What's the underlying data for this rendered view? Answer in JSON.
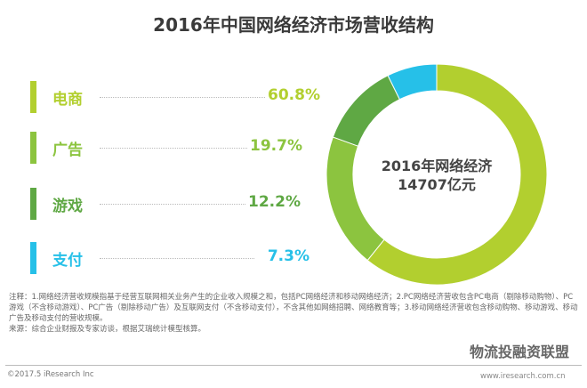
{
  "chart_data": {
    "type": "pie",
    "title": "2016年中国网络经济市场营收结构",
    "center_label": [
      "2016年网络经济",
      "14707亿元"
    ],
    "categories": [
      "电商",
      "广告",
      "游戏",
      "支付"
    ],
    "values": [
      60.8,
      19.7,
      12.2,
      7.3
    ],
    "value_labels": [
      "60.8%",
      "19.7%",
      "12.2%",
      "7.3%"
    ],
    "colors": [
      "#b2cf2f",
      "#8cc43f",
      "#5fa844",
      "#26c0e8"
    ],
    "donut": true,
    "legend": "left"
  },
  "footer": {
    "note": "注释：1.网络经济营收规模指基于经营互联网相关业务产生的企业收入规模之和，包括PC网络经济和移动网络经济；2.PC网络经济营收包含PC电商（剔除移动购物）、PC游戏（不含移动游戏）、PC广告（剔除移动广告）及互联网支付（不含移动支付），不含其他如网络招聘、网络教育等；3.移动网络经济营收包含移动购物、移动游戏、移动广告及移动支付的营收规模。",
    "source": "来源：综合企业财报及专家访谈，根据艾瑞统计模型核算。",
    "copyright": "©2017.5 iResearch Inc",
    "watermark": "物流投融资联盟",
    "url": "www.iresearch.com.cn"
  }
}
